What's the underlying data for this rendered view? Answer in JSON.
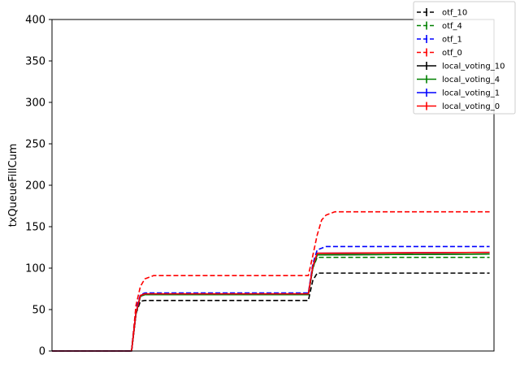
{
  "chart_data": {
    "type": "line",
    "title": "",
    "xlabel": "",
    "ylabel": "txQueueFillCum",
    "ylim": [
      0,
      400
    ],
    "xlim": [
      0,
      1
    ],
    "yticks": [
      0,
      50,
      100,
      150,
      200,
      250,
      300,
      350,
      400
    ],
    "xticks": [],
    "grid": false,
    "legend_position": "top-right",
    "series": [
      {
        "name": "otf_10",
        "color": "#000000",
        "dashed": true,
        "x": [
          0,
          0.18,
          0.19,
          0.2,
          0.21,
          0.58,
          0.59,
          0.6,
          0.99
        ],
        "y": [
          0,
          0,
          45,
          60,
          61,
          61,
          85,
          94,
          94
        ]
      },
      {
        "name": "otf_4",
        "color": "#008000",
        "dashed": true,
        "x": [
          0,
          0.18,
          0.19,
          0.2,
          0.21,
          0.58,
          0.59,
          0.6,
          0.99
        ],
        "y": [
          0,
          0,
          50,
          67,
          69,
          69,
          100,
          113,
          113
        ]
      },
      {
        "name": "otf_1",
        "color": "#0000ff",
        "dashed": true,
        "x": [
          0,
          0.18,
          0.19,
          0.2,
          0.21,
          0.58,
          0.59,
          0.6,
          0.62,
          0.99
        ],
        "y": [
          0,
          0,
          50,
          68,
          70,
          70,
          105,
          122,
          126,
          126
        ]
      },
      {
        "name": "otf_0",
        "color": "#ff0000",
        "dashed": true,
        "x": [
          0,
          0.18,
          0.19,
          0.2,
          0.21,
          0.23,
          0.58,
          0.59,
          0.6,
          0.61,
          0.62,
          0.64,
          0.99
        ],
        "y": [
          0,
          0,
          55,
          78,
          87,
          91,
          91,
          115,
          140,
          158,
          164,
          168,
          168
        ]
      },
      {
        "name": "local_voting_10",
        "color": "#000000",
        "dashed": false,
        "x": [
          0,
          0.18,
          0.19,
          0.2,
          0.21,
          0.58,
          0.59,
          0.6,
          0.99
        ],
        "y": [
          0,
          0,
          45,
          66,
          68,
          68,
          100,
          116,
          117
        ]
      },
      {
        "name": "local_voting_4",
        "color": "#008000",
        "dashed": false,
        "x": [
          0,
          0.18,
          0.19,
          0.2,
          0.21,
          0.58,
          0.59,
          0.6,
          0.99
        ],
        "y": [
          0,
          0,
          45,
          66,
          68,
          68,
          100,
          116,
          117
        ]
      },
      {
        "name": "local_voting_1",
        "color": "#0000ff",
        "dashed": false,
        "x": [
          0,
          0.18,
          0.19,
          0.2,
          0.21,
          0.58,
          0.59,
          0.6,
          0.99
        ],
        "y": [
          0,
          0,
          46,
          67,
          69,
          69,
          102,
          118,
          119
        ]
      },
      {
        "name": "local_voting_0",
        "color": "#ff0000",
        "dashed": false,
        "x": [
          0,
          0.18,
          0.19,
          0.2,
          0.21,
          0.58,
          0.59,
          0.6,
          0.99
        ],
        "y": [
          0,
          0,
          46,
          67,
          69,
          69,
          102,
          118,
          119
        ]
      }
    ]
  }
}
